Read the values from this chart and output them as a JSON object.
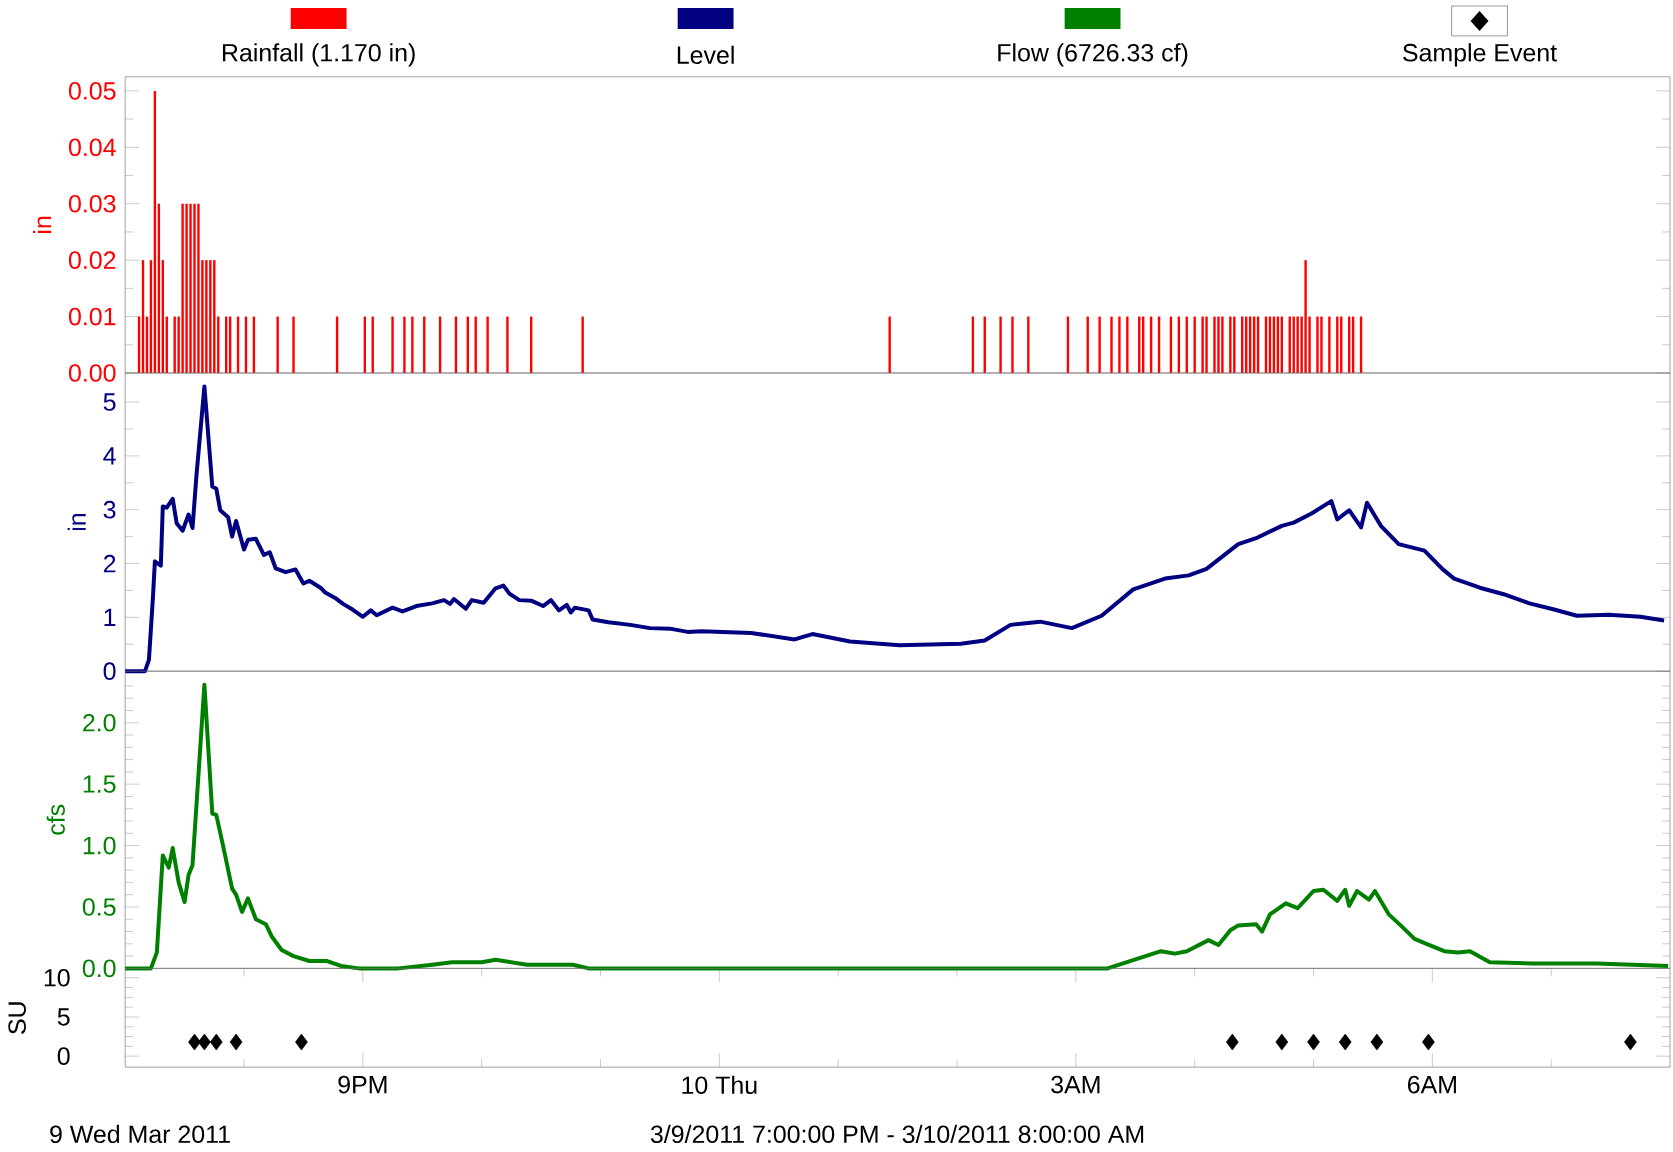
{
  "chart_data": [
    {
      "type": "bar",
      "ylabel": "in",
      "legend": "top",
      "tick_labels": "y",
      "xlim": [
        "2011-03-09T19:00",
        "2011-03-10T08:00"
      ],
      "ylim": [
        0,
        0.0525
      ],
      "yticks": [
        {
          "value": 0,
          "label": "0.00"
        },
        {
          "value": 0.005,
          "label": null
        },
        {
          "value": 0.01,
          "label": "0.01"
        },
        {
          "value": 0.015,
          "label": null
        },
        {
          "value": 0.02,
          "label": "0.02"
        },
        {
          "value": 0.025,
          "label": null
        },
        {
          "value": 0.03,
          "label": "0.03"
        },
        {
          "value": 0.035,
          "label": null
        },
        {
          "value": 0.04,
          "label": "0.04"
        },
        {
          "value": 0.045,
          "label": null
        },
        {
          "value": 0.05,
          "label": "0.05"
        }
      ],
      "series": [
        {
          "name": "Rainfall (1.170 in)",
          "color": "#ff0000",
          "x": [
            "2011-03-09T19:07",
            "2011-03-09T19:09",
            "2011-03-09T19:11",
            "2011-03-09T19:13",
            "2011-03-09T19:15",
            "2011-03-09T19:17",
            "2011-03-09T19:19",
            "2011-03-09T19:21",
            "2011-03-09T19:25",
            "2011-03-09T19:27",
            "2011-03-09T19:29",
            "2011-03-09T19:31",
            "2011-03-09T19:33",
            "2011-03-09T19:35",
            "2011-03-09T19:37",
            "2011-03-09T19:39",
            "2011-03-09T19:41",
            "2011-03-09T19:43",
            "2011-03-09T19:45",
            "2011-03-09T19:47",
            "2011-03-09T19:51",
            "2011-03-09T19:53",
            "2011-03-09T19:57",
            "2011-03-09T20:01",
            "2011-03-09T20:05",
            "2011-03-09T20:17",
            "2011-03-09T20:25",
            "2011-03-09T20:47",
            "2011-03-09T21:01",
            "2011-03-09T21:05",
            "2011-03-09T21:15",
            "2011-03-09T21:21",
            "2011-03-09T21:25",
            "2011-03-09T21:31",
            "2011-03-09T21:39",
            "2011-03-09T21:47",
            "2011-03-09T21:53",
            "2011-03-09T21:57",
            "2011-03-09T22:03",
            "2011-03-09T22:13",
            "2011-03-09T22:25",
            "2011-03-09T22:51",
            "2011-03-10T01:26",
            "2011-03-10T02:08",
            "2011-03-10T02:14",
            "2011-03-10T02:22",
            "2011-03-10T02:28",
            "2011-03-10T02:36",
            "2011-03-10T02:56",
            "2011-03-10T03:06",
            "2011-03-10T03:12",
            "2011-03-10T03:18",
            "2011-03-10T03:22",
            "2011-03-10T03:26",
            "2011-03-10T03:32",
            "2011-03-10T03:34",
            "2011-03-10T03:38",
            "2011-03-10T03:42",
            "2011-03-10T03:48",
            "2011-03-10T03:52",
            "2011-03-10T03:56",
            "2011-03-10T04:00",
            "2011-03-10T04:04",
            "2011-03-10T04:06",
            "2011-03-10T04:10",
            "2011-03-10T04:12",
            "2011-03-10T04:14",
            "2011-03-10T04:18",
            "2011-03-10T04:20",
            "2011-03-10T04:24",
            "2011-03-10T04:26",
            "2011-03-10T04:28",
            "2011-03-10T04:30",
            "2011-03-10T04:32",
            "2011-03-10T04:36",
            "2011-03-10T04:38",
            "2011-03-10T04:40",
            "2011-03-10T04:42",
            "2011-03-10T04:44",
            "2011-03-10T04:48",
            "2011-03-10T04:50",
            "2011-03-10T04:52",
            "2011-03-10T04:54",
            "2011-03-10T04:56",
            "2011-03-10T04:58",
            "2011-03-10T05:02",
            "2011-03-10T05:04",
            "2011-03-10T05:08",
            "2011-03-10T05:12",
            "2011-03-10T05:14",
            "2011-03-10T05:18",
            "2011-03-10T05:20",
            "2011-03-10T05:24"
          ],
          "values": [
            0.01,
            0.02,
            0.01,
            0.02,
            0.05,
            0.03,
            0.02,
            0.01,
            0.01,
            0.01,
            0.03,
            0.03,
            0.03,
            0.03,
            0.03,
            0.02,
            0.02,
            0.02,
            0.02,
            0.01,
            0.01,
            0.01,
            0.01,
            0.01,
            0.01,
            0.01,
            0.01,
            0.01,
            0.01,
            0.01,
            0.01,
            0.01,
            0.01,
            0.01,
            0.01,
            0.01,
            0.01,
            0.01,
            0.01,
            0.01,
            0.01,
            0.01,
            0.01,
            0.01,
            0.01,
            0.01,
            0.01,
            0.01,
            0.01,
            0.01,
            0.01,
            0.01,
            0.01,
            0.01,
            0.01,
            0.01,
            0.01,
            0.01,
            0.01,
            0.01,
            0.01,
            0.01,
            0.01,
            0.01,
            0.01,
            0.01,
            0.01,
            0.01,
            0.01,
            0.01,
            0.01,
            0.01,
            0.01,
            0.01,
            0.01,
            0.01,
            0.01,
            0.01,
            0.01,
            0.01,
            0.01,
            0.01,
            0.01,
            0.02,
            0.01,
            0.01,
            0.01,
            0.01,
            0.01,
            0.01,
            0.01,
            0.01,
            0.01
          ]
        }
      ]
    },
    {
      "type": "line",
      "ylabel": "in",
      "legend": "top",
      "tick_labels": "y",
      "xlim": [
        "2011-03-09T19:00",
        "2011-03-10T08:00"
      ],
      "ylim": [
        0,
        5.54
      ],
      "yticks": [
        0,
        {
          "value": 0.5,
          "label": null
        },
        1,
        {
          "value": 1.5,
          "label": null
        },
        2,
        {
          "value": 2.5,
          "label": null
        },
        3,
        {
          "value": 3.5,
          "label": null
        },
        4,
        {
          "value": 4.5,
          "label": null
        },
        5
      ],
      "series": [
        {
          "name": "Level",
          "color": "#000080",
          "x": [
            "2011-03-09T19:00",
            "2011-03-09T19:10",
            "2011-03-09T19:12",
            "2011-03-09T19:14",
            "2011-03-09T19:15",
            "2011-03-09T19:18",
            "2011-03-09T19:19",
            "2011-03-09T19:21",
            "2011-03-09T19:24",
            "2011-03-09T19:26",
            "2011-03-09T19:29",
            "2011-03-09T19:32",
            "2011-03-09T19:34",
            "2011-03-09T19:36",
            "2011-03-09T19:40",
            "2011-03-09T19:44",
            "2011-03-09T19:46",
            "2011-03-09T19:48",
            "2011-03-09T19:52",
            "2011-03-09T19:54",
            "2011-03-09T19:56",
            "2011-03-09T20:00",
            "2011-03-09T20:02",
            "2011-03-09T20:06",
            "2011-03-09T20:10",
            "2011-03-09T20:13",
            "2011-03-09T20:16",
            "2011-03-09T20:21",
            "2011-03-09T20:26",
            "2011-03-09T20:30",
            "2011-03-09T20:33",
            "2011-03-09T20:39",
            "2011-03-09T20:41",
            "2011-03-09T20:46",
            "2011-03-09T20:50",
            "2011-03-09T20:55",
            "2011-03-09T21:00",
            "2011-03-09T21:04",
            "2011-03-09T21:07",
            "2011-03-09T21:15",
            "2011-03-09T21:20",
            "2011-03-09T21:27",
            "2011-03-09T21:35",
            "2011-03-09T21:41",
            "2011-03-09T21:44",
            "2011-03-09T21:46",
            "2011-03-09T21:52",
            "2011-03-09T21:55",
            "2011-03-09T22:01",
            "2011-03-09T22:07",
            "2011-03-09T22:11",
            "2011-03-09T22:14",
            "2011-03-09T22:19",
            "2011-03-09T22:25",
            "2011-03-09T22:31",
            "2011-03-09T22:35",
            "2011-03-09T22:39",
            "2011-03-09T22:43",
            "2011-03-09T22:45",
            "2011-03-09T22:47",
            "2011-03-09T22:54",
            "2011-03-09T22:56",
            "2011-03-09T23:04",
            "2011-03-09T23:15",
            "2011-03-09T23:25",
            "2011-03-09T23:35",
            "2011-03-09T23:44",
            "2011-03-09T23:51",
            "2011-03-10T00:16",
            "2011-03-10T00:38",
            "2011-03-10T00:47",
            "2011-03-10T01:06",
            "2011-03-10T01:31",
            "2011-03-10T02:02",
            "2011-03-10T02:14",
            "2011-03-10T02:27",
            "2011-03-10T02:42",
            "2011-03-10T02:58",
            "2011-03-10T03:13",
            "2011-03-10T03:29",
            "2011-03-10T03:45",
            "2011-03-10T03:57",
            "2011-03-10T04:06",
            "2011-03-10T04:22",
            "2011-03-10T04:31",
            "2011-03-10T04:44",
            "2011-03-10T04:50",
            "2011-03-10T04:59",
            "2011-03-10T05:09",
            "2011-03-10T05:12",
            "2011-03-10T05:18",
            "2011-03-10T05:24",
            "2011-03-10T05:27",
            "2011-03-10T05:34",
            "2011-03-10T05:43",
            "2011-03-10T05:56",
            "2011-03-10T06:05",
            "2011-03-10T06:11",
            "2011-03-10T06:24",
            "2011-03-10T06:36",
            "2011-03-10T06:49",
            "2011-03-10T07:01",
            "2011-03-10T07:13",
            "2011-03-10T07:29",
            "2011-03-10T07:45",
            "2011-03-10T07:57"
          ],
          "values": [
            0,
            0,
            0.21,
            1.36,
            2.04,
            1.96,
            3.06,
            3.04,
            3.2,
            2.75,
            2.61,
            2.91,
            2.66,
            3.64,
            5.29,
            3.43,
            3.39,
            2.99,
            2.86,
            2.5,
            2.79,
            2.26,
            2.44,
            2.46,
            2.16,
            2.21,
            1.91,
            1.84,
            1.89,
            1.63,
            1.68,
            1.54,
            1.46,
            1.36,
            1.25,
            1.14,
            1.01,
            1.13,
            1.04,
            1.18,
            1.11,
            1.21,
            1.26,
            1.32,
            1.25,
            1.34,
            1.16,
            1.32,
            1.27,
            1.54,
            1.59,
            1.44,
            1.32,
            1.31,
            1.21,
            1.32,
            1.13,
            1.23,
            1.09,
            1.18,
            1.13,
            0.96,
            0.91,
            0.86,
            0.8,
            0.79,
            0.73,
            0.74,
            0.71,
            0.59,
            0.69,
            0.55,
            0.48,
            0.51,
            0.57,
            0.86,
            0.92,
            0.8,
            1.03,
            1.52,
            1.72,
            1.78,
            1.9,
            2.36,
            2.47,
            2.7,
            2.76,
            2.93,
            3.16,
            2.82,
            2.99,
            2.67,
            3.13,
            2.7,
            2.36,
            2.24,
            1.9,
            1.72,
            1.55,
            1.43,
            1.26,
            1.15,
            1.03,
            1.05,
            1.01,
            0.94
          ]
        }
      ]
    },
    {
      "type": "line",
      "ylabel": "cfs",
      "legend": "top",
      "tick_labels": "y",
      "xlim": [
        "2011-03-09T19:00",
        "2011-03-10T08:00"
      ],
      "ylim": [
        0,
        2.42
      ],
      "yticks": [
        {
          "value": 0,
          "label": "0.0"
        },
        {
          "value": 0.1,
          "label": null
        },
        {
          "value": 0.2,
          "label": null
        },
        {
          "value": 0.3,
          "label": null
        },
        {
          "value": 0.4,
          "label": null
        },
        0.5,
        {
          "value": 0.6,
          "label": null
        },
        {
          "value": 0.7,
          "label": null
        },
        {
          "value": 0.8,
          "label": null
        },
        {
          "value": 0.9,
          "label": null
        },
        {
          "value": 1,
          "label": "1.0"
        },
        {
          "value": 1.1,
          "label": null
        },
        {
          "value": 1.2,
          "label": null
        },
        {
          "value": 1.3,
          "label": null
        },
        {
          "value": 1.4,
          "label": null
        },
        1.5,
        {
          "value": 1.6,
          "label": null
        },
        {
          "value": 1.7,
          "label": null
        },
        {
          "value": 1.8,
          "label": null
        },
        {
          "value": 1.9,
          "label": null
        },
        {
          "value": 2,
          "label": "2.0"
        },
        {
          "value": 2.1,
          "label": null
        },
        {
          "value": 2.2,
          "label": null
        },
        {
          "value": 2.3,
          "label": null
        }
      ],
      "series": [
        {
          "name": "Flow (6726.33 cf)",
          "color": "#008000",
          "x": [
            "2011-03-09T19:00",
            "2011-03-09T19:13",
            "2011-03-09T19:16",
            "2011-03-09T19:19",
            "2011-03-09T19:22",
            "2011-03-09T19:24",
            "2011-03-09T19:27",
            "2011-03-09T19:30",
            "2011-03-09T19:32",
            "2011-03-09T19:34",
            "2011-03-09T19:40",
            "2011-03-09T19:44",
            "2011-03-09T19:46",
            "2011-03-09T19:49",
            "2011-03-09T19:54",
            "2011-03-09T19:56",
            "2011-03-09T19:59",
            "2011-03-09T20:02",
            "2011-03-09T20:06",
            "2011-03-09T20:11",
            "2011-03-09T20:14",
            "2011-03-09T20:19",
            "2011-03-09T20:25",
            "2011-03-09T20:33",
            "2011-03-09T20:42",
            "2011-03-09T20:49",
            "2011-03-09T20:58",
            "2011-03-09T21:18",
            "2011-03-09T21:35",
            "2011-03-09T21:45",
            "2011-03-09T22:00",
            "2011-03-09T22:07",
            "2011-03-09T22:23",
            "2011-03-09T22:46",
            "2011-03-09T22:54",
            "2011-03-10T03:16",
            "2011-03-10T03:43",
            "2011-03-10T03:50",
            "2011-03-10T03:56",
            "2011-03-10T04:07",
            "2011-03-10T04:12",
            "2011-03-10T04:18",
            "2011-03-10T04:22",
            "2011-03-10T04:31",
            "2011-03-10T04:34",
            "2011-03-10T04:38",
            "2011-03-10T04:46",
            "2011-03-10T04:52",
            "2011-03-10T05:00",
            "2011-03-10T05:05",
            "2011-03-10T05:12",
            "2011-03-10T05:16",
            "2011-03-10T05:18",
            "2011-03-10T05:22",
            "2011-03-10T05:28",
            "2011-03-10T05:31",
            "2011-03-10T05:38",
            "2011-03-10T05:44",
            "2011-03-10T05:51",
            "2011-03-10T05:57",
            "2011-03-10T06:06",
            "2011-03-10T06:13",
            "2011-03-10T06:19",
            "2011-03-10T06:29",
            "2011-03-10T06:51",
            "2011-03-10T07:23",
            "2011-03-10T07:59"
          ],
          "values": [
            0,
            0,
            0.13,
            0.92,
            0.82,
            0.98,
            0.7,
            0.54,
            0.76,
            0.84,
            2.31,
            1.26,
            1.25,
            1.03,
            0.65,
            0.6,
            0.46,
            0.57,
            0.4,
            0.36,
            0.26,
            0.15,
            0.1,
            0.06,
            0.06,
            0.02,
            0,
            0,
            0.03,
            0.05,
            0.05,
            0.07,
            0.03,
            0.03,
            0,
            0,
            0.14,
            0.12,
            0.14,
            0.23,
            0.19,
            0.31,
            0.35,
            0.36,
            0.3,
            0.44,
            0.53,
            0.49,
            0.63,
            0.64,
            0.55,
            0.64,
            0.51,
            0.63,
            0.56,
            0.63,
            0.44,
            0.35,
            0.24,
            0.2,
            0.14,
            0.13,
            0.14,
            0.05,
            0.04,
            0.04,
            0.02
          ]
        }
      ]
    },
    {
      "type": "scatter",
      "ylabel": "SU",
      "legend": "top",
      "marker": "diamond",
      "xlim": [
        "2011-03-09T19:00",
        "2011-03-10T08:00"
      ],
      "ylim": [
        -1.4,
        11.2
      ],
      "xticks": [
        {
          "value": "2011-03-09T20:00",
          "label": null
        },
        {
          "value": "2011-03-09T21:00",
          "label": "9PM"
        },
        {
          "value": "2011-03-09T22:00",
          "label": null
        },
        {
          "value": "2011-03-09T23:00",
          "label": null
        },
        {
          "value": "2011-03-10T00:00",
          "label": "10 Thu"
        },
        {
          "value": "2011-03-10T01:00",
          "label": null
        },
        {
          "value": "2011-03-10T02:00",
          "label": null
        },
        {
          "value": "2011-03-10T03:00",
          "label": "3AM"
        },
        {
          "value": "2011-03-10T04:00",
          "label": null
        },
        {
          "value": "2011-03-10T05:00",
          "label": null
        },
        {
          "value": "2011-03-10T06:00",
          "label": "6AM"
        },
        {
          "value": "2011-03-10T07:00",
          "label": null
        }
      ],
      "yticks": [
        0,
        {
          "value": 1.25,
          "label": null
        },
        {
          "value": 2.5,
          "label": null
        },
        {
          "value": 3.75,
          "label": null
        },
        5,
        {
          "value": 6.25,
          "label": null
        },
        {
          "value": 7.5,
          "label": null
        },
        {
          "value": 8.75,
          "label": null
        },
        10
      ],
      "annotations": [
        "9 Wed Mar 2011",
        "3/9/2011 7:00:00 PM - 3/10/2011 8:00:00 AM"
      ],
      "series": [
        {
          "name": "Sample Event",
          "color": "#000000",
          "x": [
            "2011-03-09T19:35",
            "2011-03-09T19:40",
            "2011-03-09T19:46",
            "2011-03-09T19:56",
            "2011-03-09T20:29",
            "2011-03-10T04:19",
            "2011-03-10T04:44",
            "2011-03-10T05:00",
            "2011-03-10T05:16",
            "2011-03-10T05:32",
            "2011-03-10T05:58",
            "2011-03-10T07:40"
          ],
          "values": [
            1.8,
            1.8,
            1.8,
            1.8,
            1.8,
            1.8,
            1.8,
            1.8,
            1.8,
            1.8,
            1.8,
            1.8
          ]
        }
      ]
    }
  ]
}
